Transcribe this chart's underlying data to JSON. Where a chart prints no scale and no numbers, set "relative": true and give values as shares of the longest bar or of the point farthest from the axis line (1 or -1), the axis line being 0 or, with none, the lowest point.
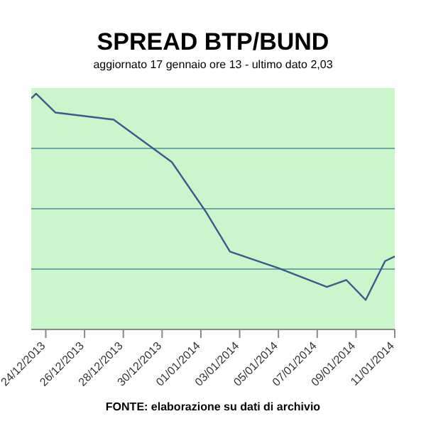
{
  "chart_data": {
    "type": "line",
    "title": "SPREAD BTP/BUND",
    "subtitle": "aggiornato 17 gennaio ore 13 - ultimo dato 2,03",
    "annotations": [
      "FONTE: elaborazione su dati di archivio"
    ],
    "relative": true,
    "color": "#3b5b8c",
    "x": [
      "2013-12-23T06:00",
      "2013-12-23T12:00",
      "2013-12-24T12:00",
      "2013-12-27T12:00",
      "2013-12-30T12:00",
      "2014-01-01T06:00",
      "2014-01-02T12:00",
      "2014-01-05",
      "2014-01-07T12:00",
      "2014-01-08T12:00",
      "2014-01-09T12:00",
      "2014-01-10T12:00",
      "2014-01-11"
    ],
    "values": [
      0.98,
      1,
      0.92,
      0.89,
      0.71,
      0.5,
      0.33,
      0.26,
      0.18,
      0.21,
      0.125,
      0.29,
      0.31
    ],
    "xlim": [
      "2013-12-23T06:00",
      "2014-01-11"
    ],
    "xticks": [
      {
        "value": "2013-12-24",
        "label": "24/12/2013"
      },
      {
        "value": "2013-12-26",
        "label": "26/12/2013"
      },
      {
        "value": "2013-12-28",
        "label": "28/12/2013"
      },
      {
        "value": "2013-12-30",
        "label": "30/12/2013"
      },
      {
        "value": "2014-01-01",
        "label": "01/01/2014"
      },
      {
        "value": "2014-01-03",
        "label": "03/01/2014"
      },
      {
        "value": "2014-01-05",
        "label": "05/01/2014"
      },
      {
        "value": "2014-01-07",
        "label": "07/01/2014"
      },
      {
        "value": "2014-01-09",
        "label": "09/01/2014"
      },
      {
        "value": "2014-01-11",
        "label": "11/01/2014"
      }
    ],
    "ref_lines": [
      {
        "axis": "y",
        "value": 0.256,
        "color": "#6fa8a0"
      },
      {
        "axis": "y",
        "value": 0.512,
        "color": "#6fa8a0"
      },
      {
        "axis": "y",
        "value": 0.768,
        "color": "#6fa8a0"
      }
    ],
    "marker": "none",
    "line_style": "solid"
  }
}
